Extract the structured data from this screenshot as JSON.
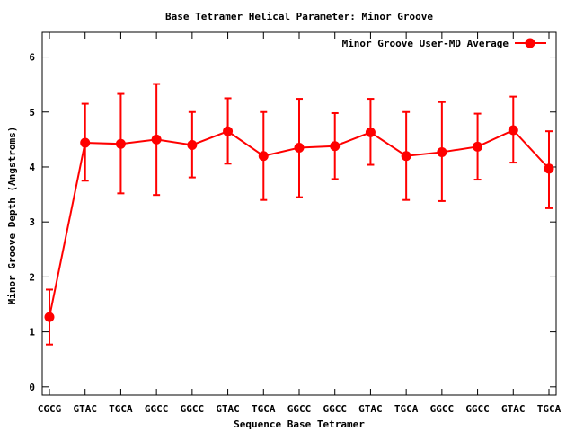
{
  "chart_data": {
    "type": "line",
    "title": "Base Tetramer Helical Parameter: Minor Groove",
    "xlabel": "Sequence Base Tetramer",
    "ylabel": "Minor Groove Depth (Angstroms)",
    "ylim": [
      -0.15,
      6.45
    ],
    "yticks": [
      0,
      1,
      2,
      3,
      4,
      5,
      6
    ],
    "grid": false,
    "legend_position": "top-right",
    "categories": [
      "CGCG",
      "GTAC",
      "TGCA",
      "GGCC",
      "GGCC",
      "GTAC",
      "TGCA",
      "GGCC",
      "GGCC",
      "GTAC",
      "TGCA",
      "GGCC",
      "GGCC",
      "GTAC",
      "TGCA"
    ],
    "series": [
      {
        "name": "Minor Groove User-MD Average",
        "color": "#ff0000",
        "values": [
          1.27,
          4.44,
          4.42,
          4.5,
          4.4,
          4.65,
          4.2,
          4.35,
          4.38,
          4.63,
          4.2,
          4.27,
          4.37,
          4.67,
          3.97
        ],
        "err_low": [
          0.77,
          3.75,
          3.52,
          3.49,
          3.81,
          4.06,
          3.4,
          3.45,
          3.78,
          4.04,
          3.4,
          3.38,
          3.77,
          4.08,
          3.25
        ],
        "err_high": [
          1.77,
          5.15,
          5.33,
          5.51,
          5.0,
          5.25,
          5.0,
          5.24,
          4.98,
          5.24,
          5.0,
          5.18,
          4.97,
          5.28,
          4.65
        ]
      }
    ]
  }
}
